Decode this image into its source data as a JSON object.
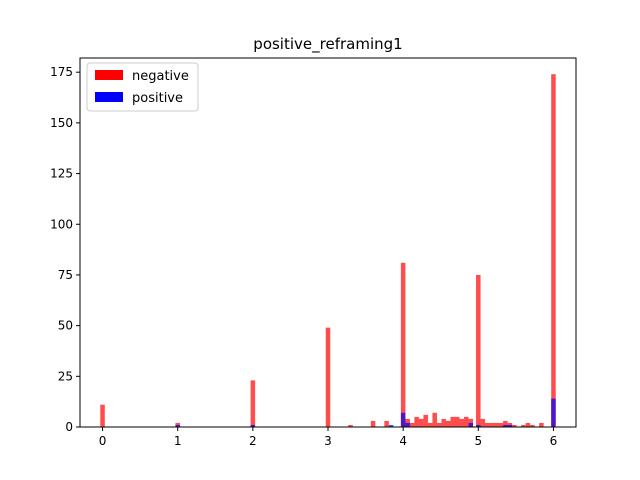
{
  "chart_data": {
    "type": "bar",
    "title": "positive_reframing1",
    "xlabel": "",
    "ylabel": "",
    "xlim": [
      -0.3,
      6.3
    ],
    "ylim": [
      0,
      182
    ],
    "bin_width": 0.06,
    "x_ticks": [
      0,
      1,
      2,
      3,
      4,
      5,
      6
    ],
    "x_tick_labels": [
      "0",
      "1",
      "2",
      "3",
      "4",
      "5",
      "6"
    ],
    "y_ticks": [
      0,
      25,
      50,
      75,
      100,
      125,
      150,
      175
    ],
    "y_tick_labels": [
      "0",
      "25",
      "50",
      "75",
      "100",
      "125",
      "150",
      "175"
    ],
    "legend_position": "top-left",
    "grid": false,
    "series": [
      {
        "name": "negative",
        "color": "#ff0000",
        "opacity": 0.7,
        "points": [
          {
            "x": 0.0,
            "y": 11
          },
          {
            "x": 1.0,
            "y": 2
          },
          {
            "x": 2.0,
            "y": 23
          },
          {
            "x": 3.0,
            "y": 49
          },
          {
            "x": 3.3,
            "y": 1
          },
          {
            "x": 3.6,
            "y": 3
          },
          {
            "x": 3.78,
            "y": 3
          },
          {
            "x": 4.0,
            "y": 81
          },
          {
            "x": 4.06,
            "y": 4
          },
          {
            "x": 4.12,
            "y": 2
          },
          {
            "x": 4.18,
            "y": 5
          },
          {
            "x": 4.24,
            "y": 4
          },
          {
            "x": 4.3,
            "y": 6
          },
          {
            "x": 4.36,
            "y": 2
          },
          {
            "x": 4.42,
            "y": 7
          },
          {
            "x": 4.48,
            "y": 2
          },
          {
            "x": 4.54,
            "y": 4
          },
          {
            "x": 4.6,
            "y": 3
          },
          {
            "x": 4.66,
            "y": 5
          },
          {
            "x": 4.72,
            "y": 5
          },
          {
            "x": 4.78,
            "y": 4
          },
          {
            "x": 4.84,
            "y": 5
          },
          {
            "x": 4.9,
            "y": 4
          },
          {
            "x": 5.0,
            "y": 75
          },
          {
            "x": 5.06,
            "y": 4
          },
          {
            "x": 5.12,
            "y": 2
          },
          {
            "x": 5.18,
            "y": 2
          },
          {
            "x": 5.24,
            "y": 2
          },
          {
            "x": 5.3,
            "y": 2
          },
          {
            "x": 5.36,
            "y": 3
          },
          {
            "x": 5.42,
            "y": 2
          },
          {
            "x": 5.48,
            "y": 1
          },
          {
            "x": 5.6,
            "y": 1
          },
          {
            "x": 5.66,
            "y": 2
          },
          {
            "x": 5.72,
            "y": 1
          },
          {
            "x": 5.84,
            "y": 2
          },
          {
            "x": 6.0,
            "y": 174
          }
        ]
      },
      {
        "name": "positive",
        "color": "#0000ff",
        "opacity": 0.7,
        "points": [
          {
            "x": 1.0,
            "y": 1
          },
          {
            "x": 2.0,
            "y": 1
          },
          {
            "x": 3.84,
            "y": 1
          },
          {
            "x": 4.0,
            "y": 7
          },
          {
            "x": 4.06,
            "y": 2
          },
          {
            "x": 4.9,
            "y": 2
          },
          {
            "x": 5.0,
            "y": 1
          },
          {
            "x": 5.36,
            "y": 1
          },
          {
            "x": 5.42,
            "y": 1
          },
          {
            "x": 6.0,
            "y": 14
          }
        ]
      }
    ]
  }
}
